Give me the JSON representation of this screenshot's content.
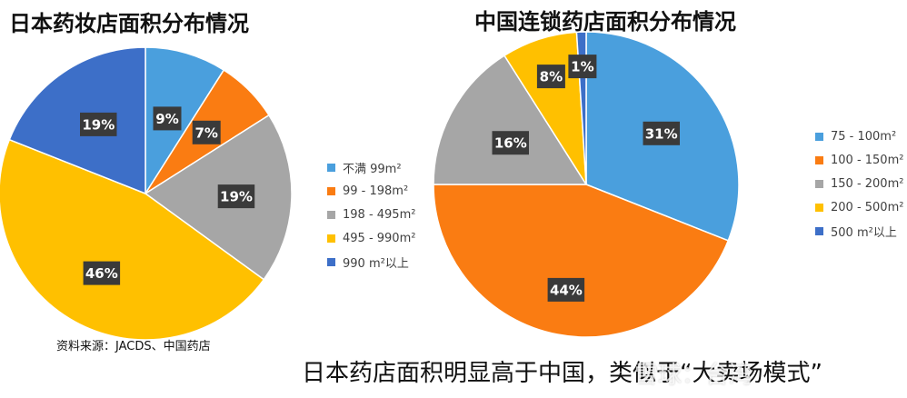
{
  "caption": "日本药店面积明显高于中国，类似于“大卖场模式”",
  "source_note": "资料来源：JACDS、中国药店",
  "watermark": "雪球：台湾",
  "colors": {
    "blue": "#4A9FDD",
    "orange": "#FA7C12",
    "gray": "#A6A6A6",
    "yellow": "#FFC000",
    "darkblue": "#3D6FC8",
    "label_bg": "#3A3A3A"
  },
  "chart_data": [
    {
      "type": "pie",
      "title": "日本药妆店面积分布情况",
      "legend_position": "right",
      "categories": [
        "不满 99m²",
        "99 - 198m²",
        "198 - 495m²",
        "495 - 990m²",
        "990 m²以上"
      ],
      "values": [
        9,
        7,
        19,
        46,
        19
      ],
      "data_labels": [
        "9%",
        "7%",
        "19%",
        "46%",
        "19%"
      ],
      "colors": [
        "#4A9FDD",
        "#FA7C12",
        "#A6A6A6",
        "#FFC000",
        "#3D6FC8"
      ]
    },
    {
      "type": "pie",
      "title": "中国连锁药店面积分布情况",
      "legend_position": "right",
      "categories": [
        "75 - 100m²",
        "100 - 150m²",
        "150 - 200m²",
        "200 - 500m²",
        "500 m²以上"
      ],
      "values": [
        31,
        44,
        16,
        8,
        1
      ],
      "data_labels": [
        "31%",
        "44%",
        "16%",
        "8%",
        "1%"
      ],
      "colors": [
        "#4A9FDD",
        "#FA7C12",
        "#A6A6A6",
        "#FFC000",
        "#3D6FC8"
      ]
    }
  ]
}
